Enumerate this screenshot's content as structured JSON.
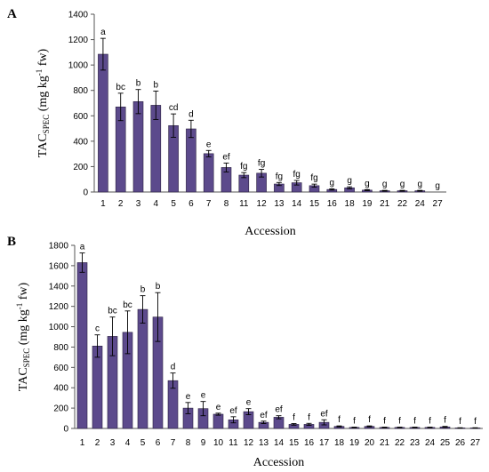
{
  "chart_data": [
    {
      "panel": "A",
      "type": "bar",
      "xlabel": "Accession",
      "ylabel": {
        "main": "TAC",
        "sub": "SPEC",
        "rest": " (mg kg",
        "sup": "-1",
        "tail": " fw)"
      },
      "ylim": [
        0,
        1400
      ],
      "yticks": [
        0,
        200,
        400,
        600,
        800,
        1000,
        1200,
        1400
      ],
      "categories": [
        "1",
        "2",
        "3",
        "4",
        "5",
        "6",
        "7",
        "8",
        "11",
        "12",
        "13",
        "14",
        "15",
        "16",
        "18",
        "19",
        "21",
        "22",
        "24",
        "27"
      ],
      "values": [
        1085,
        670,
        712,
        683,
        523,
        497,
        302,
        193,
        133,
        148,
        63,
        73,
        50,
        20,
        33,
        15,
        10,
        10,
        10,
        0
      ],
      "errors": [
        125,
        108,
        95,
        112,
        92,
        68,
        25,
        35,
        20,
        30,
        12,
        18,
        12,
        5,
        8,
        4,
        3,
        3,
        3,
        0
      ],
      "letters": [
        "a",
        "bc",
        "b",
        "b",
        "cd",
        "d",
        "e",
        "ef",
        "fg",
        "fg",
        "fg",
        "fg",
        "fg",
        "g",
        "g",
        "g",
        "g",
        "g",
        "g",
        "g"
      ],
      "bar_color": "#5c4a8c",
      "grid": false
    },
    {
      "panel": "B",
      "type": "bar",
      "xlabel": "Accession",
      "ylabel": {
        "main": "TAC",
        "sub": "SPEC",
        "rest": " (mg kg",
        "sup": "-1",
        "tail": " fw)"
      },
      "ylim": [
        0,
        1800
      ],
      "yticks": [
        0,
        200,
        400,
        600,
        800,
        1000,
        1200,
        1400,
        1600,
        1800
      ],
      "categories": [
        "1",
        "2",
        "3",
        "4",
        "5",
        "6",
        "7",
        "8",
        "9",
        "10",
        "11",
        "12",
        "13",
        "14",
        "15",
        "16",
        "17",
        "18",
        "19",
        "20",
        "21",
        "22",
        "23",
        "24",
        "25",
        "26",
        "27"
      ],
      "values": [
        1630,
        810,
        905,
        945,
        1170,
        1095,
        470,
        200,
        195,
        140,
        85,
        165,
        60,
        110,
        40,
        40,
        60,
        20,
        10,
        20,
        10,
        10,
        10,
        10,
        15,
        5,
        5
      ],
      "errors": [
        95,
        110,
        190,
        210,
        135,
        240,
        75,
        55,
        70,
        10,
        30,
        30,
        12,
        15,
        8,
        10,
        25,
        5,
        3,
        5,
        3,
        3,
        3,
        3,
        5,
        2,
        2
      ],
      "letters": [
        "a",
        "c",
        "bc",
        "bc",
        "b",
        "b",
        "d",
        "e",
        "e",
        "e",
        "ef",
        "e",
        "ef",
        "ef",
        "f",
        "f",
        "ef",
        "f",
        "f",
        "f",
        "f",
        "f",
        "f",
        "f",
        "f",
        "f",
        "f"
      ],
      "bar_color": "#5c4a8c",
      "grid": false
    }
  ]
}
